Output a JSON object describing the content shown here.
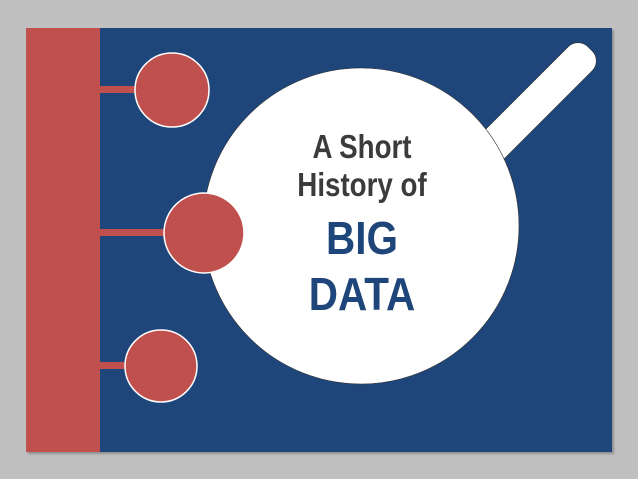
{
  "slide": {
    "title_line1": "A Short",
    "title_line2": "History of",
    "title_line3": "BIG",
    "title_line4": "DATA"
  },
  "colors": {
    "background_frame": "#c0c0c0",
    "slide_background": "#1f467a",
    "timeline_red": "#c0504d",
    "magnifier_lens": "#ffffff",
    "title_dark": "#3b3b3b",
    "title_blue": "#1f467a"
  }
}
